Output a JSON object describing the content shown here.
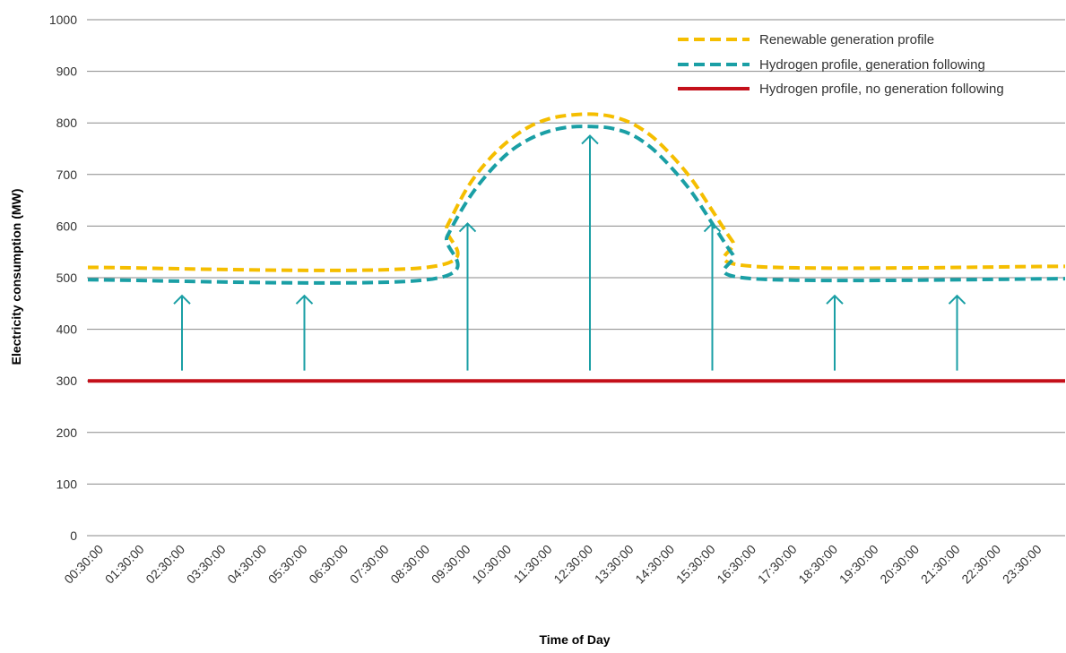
{
  "chart_data": {
    "type": "line",
    "xlabel": "Time of Day",
    "ylabel": "Electricity consumption (MW)",
    "ylim": [
      0,
      1000
    ],
    "yticks": [
      0,
      100,
      200,
      300,
      400,
      500,
      600,
      700,
      800,
      900,
      1000
    ],
    "grid": true,
    "legend_position": "top-right",
    "categories": [
      "00:30:00",
      "01:30:00",
      "02:30:00",
      "03:30:00",
      "04:30:00",
      "05:30:00",
      "06:30:00",
      "07:30:00",
      "08:30:00",
      "09:30:00",
      "10:30:00",
      "11:30:00",
      "12:30:00",
      "13:30:00",
      "14:30:00",
      "15:30:00",
      "16:30:00",
      "17:30:00",
      "18:30:00",
      "19:30:00",
      "20:30:00",
      "21:30:00",
      "22:30:00",
      "23:30:00"
    ],
    "series": [
      {
        "name": "Renewable generation profile",
        "color": "#F5BE00",
        "style": "dashed",
        "x": [
          "00:30:00",
          "08:30:00",
          "09:00:00",
          "09:30:00",
          "10:00:00",
          "10:30:00",
          "11:00:00",
          "11:30:00",
          "12:00:00",
          "12:30:00",
          "13:00:00",
          "13:30:00",
          "14:00:00",
          "14:30:00",
          "15:00:00",
          "15:30:00",
          "16:00:00",
          "16:30:00",
          "23:30:00"
        ],
        "values": [
          520,
          520,
          600,
          675,
          727,
          765,
          792,
          808,
          815,
          817,
          813,
          800,
          775,
          737,
          690,
          630,
          570,
          522,
          522
        ]
      },
      {
        "name": "Hydrogen profile, generation following",
        "color": "#1A9FA5",
        "style": "dashed",
        "x": [
          "00:30:00",
          "08:30:00",
          "09:00:00",
          "09:30:00",
          "10:00:00",
          "10:30:00",
          "11:00:00",
          "11:30:00",
          "12:00:00",
          "12:30:00",
          "13:00:00",
          "13:30:00",
          "14:00:00",
          "14:30:00",
          "15:00:00",
          "15:30:00",
          "16:00:00",
          "16:30:00",
          "23:30:00"
        ],
        "values": [
          496,
          496,
          580,
          650,
          702,
          742,
          768,
          784,
          792,
          793,
          790,
          778,
          752,
          713,
          665,
          605,
          545,
          498,
          498
        ]
      },
      {
        "name": "Hydrogen profile, no generation following",
        "color": "#C4101A",
        "style": "solid",
        "x": [
          "00:30:00",
          "23:30:00"
        ],
        "values": [
          300,
          300
        ]
      }
    ],
    "annotations": {
      "type": "upward-arrows",
      "color": "#1A9FA5",
      "arrows": [
        {
          "x": "02:30:00",
          "from": 320,
          "to": 465
        },
        {
          "x": "05:30:00",
          "from": 320,
          "to": 465
        },
        {
          "x": "09:30:00",
          "from": 320,
          "to": 605
        },
        {
          "x": "12:30:00",
          "from": 320,
          "to": 775
        },
        {
          "x": "15:30:00",
          "from": 320,
          "to": 605
        },
        {
          "x": "18:30:00",
          "from": 320,
          "to": 465
        },
        {
          "x": "21:30:00",
          "from": 320,
          "to": 465
        }
      ]
    }
  }
}
